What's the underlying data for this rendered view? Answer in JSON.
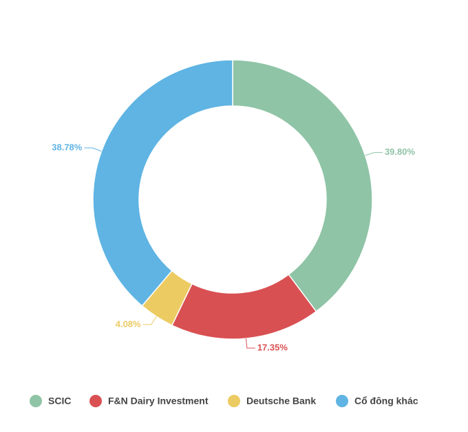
{
  "chart_data": {
    "type": "donut",
    "categories": [
      "SCIC",
      "F&N Dairy Investment",
      "Deutsche Bank",
      "Cổ đông khác"
    ],
    "values": [
      39.8,
      17.35,
      4.08,
      38.78
    ],
    "value_labels": [
      "39.80%",
      "17.35%",
      "4.08%",
      "38.78%"
    ],
    "colors": [
      "#8fc4a6",
      "#d95052",
      "#eccb63",
      "#5fb4e3"
    ],
    "legend": "bottom"
  }
}
